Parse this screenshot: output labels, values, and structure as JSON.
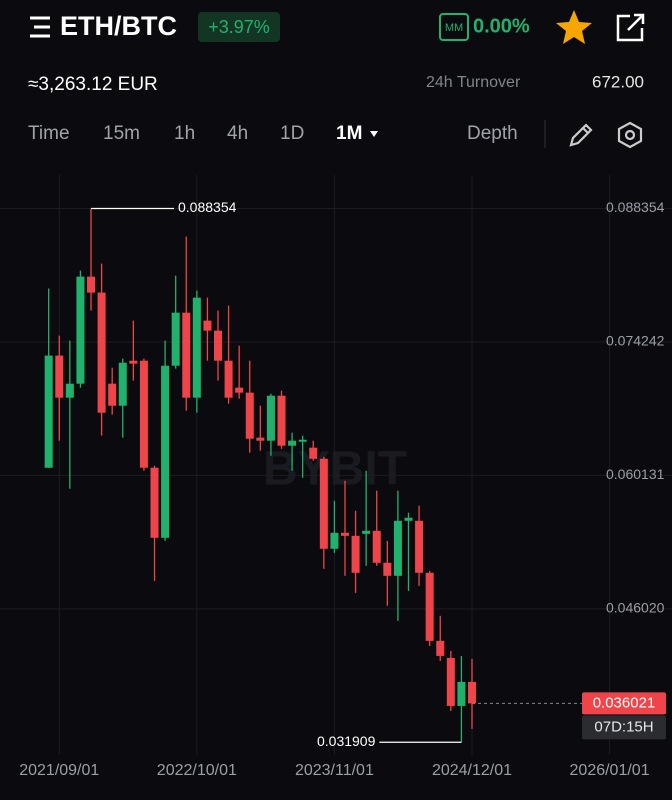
{
  "header": {
    "pair": "ETH/BTC",
    "change": "+3.97%",
    "mm_label": "MM",
    "mm_value": "0.00%"
  },
  "price_eur": "≈3,263.12 EUR",
  "stats": {
    "label": "24h Turnover",
    "value": "672.00"
  },
  "tabs": [
    "Time",
    "15m",
    "1h",
    "4h",
    "1D",
    "1M",
    "Depth"
  ],
  "chart_data": {
    "type": "candlestick",
    "watermark": "BYBIT",
    "up_color": "#20b26c",
    "down_color": "#ef454a",
    "open": [
      0.06094,
      0.0728,
      0.06835,
      0.06983,
      0.08115,
      0.07946,
      0.06983,
      0.0675,
      0.07226,
      0.07226,
      0.06094,
      0.05353,
      0.07173,
      0.07734,
      0.06835,
      0.0765,
      0.07544,
      0.07226,
      0.06941,
      0.06888,
      0.06412,
      0.0638,
      0.06856,
      0.06327,
      0.06369,
      0.06306,
      0.06189,
      0.05237,
      0.05406,
      0.05374,
      0.05395,
      0.05427,
      0.05089,
      0.04951,
      0.05533,
      0.05533,
      0.04983,
      0.04263,
      0.04083,
      0.03575,
      0.03829
    ],
    "high": [
      0.07989,
      0.07491,
      0.07438,
      0.08179,
      0.088354,
      0.08253,
      0.07152,
      0.07248,
      0.0765,
      0.07248,
      0.06115,
      0.07438,
      0.08126,
      0.08539,
      0.07967,
      0.07893,
      0.07756,
      0.07808,
      0.07385,
      0.07226,
      0.0675,
      0.06877,
      0.06909,
      0.06464,
      0.06433,
      0.0638,
      0.0621,
      0.05745,
      0.05956,
      0.05639,
      0.06062,
      0.05851,
      0.05321,
      0.05851,
      0.05618,
      0.05692,
      0.05004,
      0.04528,
      0.04157,
      0.04104,
      0.04073
    ],
    "low": [
      0.06094,
      0.0638,
      0.05872,
      0.06941,
      0.07756,
      0.06433,
      0.06655,
      0.06412,
      0.07015,
      0.06062,
      0.04898,
      0.05321,
      0.07142,
      0.06697,
      0.06676,
      0.07226,
      0.07015,
      0.06771,
      0.06824,
      0.06253,
      0.06274,
      0.06221,
      0.06295,
      0.06062,
      0.05988,
      0.06168,
      0.05025,
      0.05194,
      0.04951,
      0.04771,
      0.05057,
      0.05057,
      0.04634,
      0.04475,
      0.04792,
      0.04845,
      0.0421,
      0.04051,
      0.03522,
      0.031909,
      0.03332
    ],
    "close": [
      0.0728,
      0.06835,
      0.06983,
      0.08115,
      0.07946,
      0.06676,
      0.0675,
      0.07205,
      0.07195,
      0.06094,
      0.05353,
      0.07173,
      0.07734,
      0.06835,
      0.07893,
      0.07544,
      0.07226,
      0.06835,
      0.06888,
      0.06401,
      0.0638,
      0.06856,
      0.06327,
      0.0638,
      0.0639,
      0.06189,
      0.05237,
      0.05406,
      0.05374,
      0.04983,
      0.05427,
      0.05089,
      0.04951,
      0.05533,
      0.05565,
      0.04983,
      0.04263,
      0.04104,
      0.03575,
      0.03829,
      0.036021
    ],
    "ylim": [
      0.0313,
      0.0919
    ],
    "yticks": [
      0.088354,
      0.074242,
      0.060131,
      {
        "value": 0.04602,
        "label": "0.046020"
      }
    ],
    "xlim": [
      -4.6,
      58.9
    ],
    "xticks": [
      {
        "value": 1,
        "label": "2021/09/01"
      },
      {
        "value": 14,
        "label": "2022/10/01"
      },
      {
        "value": 27,
        "label": "2023/11/01"
      },
      {
        "value": 40,
        "label": "2024/12/01"
      },
      {
        "value": 53,
        "label": "2026/01/01"
      }
    ],
    "annotations": {
      "high": 0.088354,
      "low": 0.031909
    },
    "last_price": 0.036021,
    "countdown": "07D:15H",
    "grid": true
  }
}
